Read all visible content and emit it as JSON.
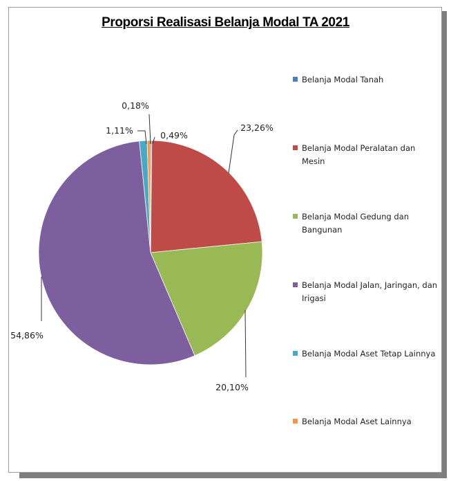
{
  "chart_data": {
    "type": "pie",
    "title": "Proporsi Realisasi Belanja Modal TA 2021",
    "slices": [
      {
        "name": "Belanja Modal Tanah",
        "value": 0.18,
        "label": "0,18%",
        "color": "#4a7ebb"
      },
      {
        "name": "Belanja Modal Peralatan dan Mesin",
        "value": 23.26,
        "label": "23,26%",
        "color": "#be4b48"
      },
      {
        "name": "Belanja Modal Gedung dan Bangunan",
        "value": 20.1,
        "label": "20,10%",
        "color": "#98b954"
      },
      {
        "name": "Belanja Modal Jalan, Jaringan, dan Irigasi",
        "value": 54.86,
        "label": "54,86%",
        "color": "#7d5fa0"
      },
      {
        "name": "Belanja Modal Aset Tetap Lainnya",
        "value": 1.11,
        "label": "1,11%",
        "color": "#46aac5"
      },
      {
        "name": "Belanja Modal Aset Lainnya",
        "value": 0.49,
        "label": "0,49%",
        "color": "#f79646"
      }
    ],
    "legend_position": "right"
  }
}
